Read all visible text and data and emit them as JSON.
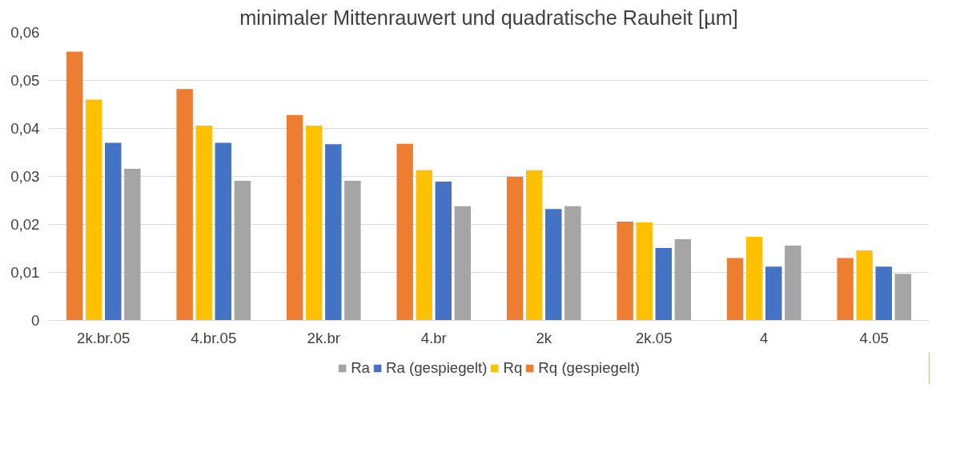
{
  "chart_data": {
    "type": "bar",
    "title": "minimaler Mittenrauwert und quadratische Rauheit [µm]",
    "categories": [
      "2k.br.05",
      "4.br.05",
      "2k.br",
      "4.br",
      "2k",
      "2k.05",
      "4",
      "4.05"
    ],
    "series": [
      {
        "name": "Rq (gespiegelt)",
        "color": "#ed7d31",
        "values": [
          0.056,
          0.0482,
          0.0428,
          0.0368,
          0.0299,
          0.0206,
          0.013,
          0.013
        ]
      },
      {
        "name": "Rq",
        "color": "#ffc000",
        "values": [
          0.046,
          0.0406,
          0.0406,
          0.0313,
          0.0313,
          0.0204,
          0.0174,
          0.0146
        ]
      },
      {
        "name": "Ra (gespiegelt)",
        "color": "#4472c4",
        "values": [
          0.037,
          0.037,
          0.0367,
          0.0289,
          0.0232,
          0.0151,
          0.0112,
          0.0112
        ]
      },
      {
        "name": "Ra",
        "color": "#a5a5a5",
        "values": [
          0.0316,
          0.0291,
          0.0291,
          0.0238,
          0.0238,
          0.0169,
          0.0156,
          0.0097
        ]
      }
    ],
    "ylim": [
      0,
      0.06
    ],
    "yticks": [
      0,
      {
        "value": 0.01,
        "label": "0,01"
      },
      {
        "value": 0.02,
        "label": "0,02"
      },
      {
        "value": 0.03,
        "label": "0,03"
      },
      {
        "value": 0.04,
        "label": "0,04"
      },
      {
        "value": 0.05,
        "label": "0,05"
      },
      {
        "value": 0.06,
        "label": "0,06"
      }
    ],
    "grid": "y",
    "legend": "bottom"
  }
}
